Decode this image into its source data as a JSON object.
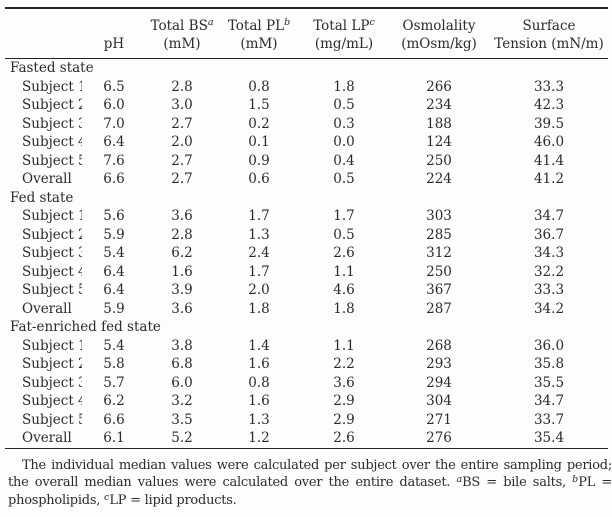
{
  "meta": {
    "background_color": "#fdfdfb",
    "ink_color": "#2b2b2b",
    "rule_color": "#242424"
  },
  "table": {
    "header": {
      "columns": [
        {
          "name": "row-label",
          "line1": "",
          "sup": "",
          "line2": ""
        },
        {
          "name": "ph",
          "line1": "",
          "sup": "",
          "line2": "pH"
        },
        {
          "name": "total-bs",
          "line1": "Total BS",
          "sup": "a",
          "line2": "(mM)"
        },
        {
          "name": "total-pl",
          "line1": "Total PL",
          "sup": "b",
          "line2": "(mM)"
        },
        {
          "name": "total-lp",
          "line1": "Total LP",
          "sup": "c",
          "line2": "(mg/mL)"
        },
        {
          "name": "osmolality",
          "line1": "Osmolality",
          "sup": "",
          "line2": "(mOsm/kg)"
        },
        {
          "name": "surface-tension",
          "line1": "Surface",
          "sup": "",
          "line2": "Tension (mN/m)"
        }
      ]
    },
    "groups": [
      {
        "label": "Fasted state",
        "rows": [
          {
            "label": "Subject 1",
            "values": [
              "6.5",
              "2.8",
              "0.8",
              "1.8",
              "266",
              "33.3"
            ]
          },
          {
            "label": "Subject 2",
            "values": [
              "6.0",
              "3.0",
              "1.5",
              "0.5",
              "234",
              "42.3"
            ]
          },
          {
            "label": "Subject 3",
            "values": [
              "7.0",
              "2.7",
              "0.2",
              "0.3",
              "188",
              "39.5"
            ]
          },
          {
            "label": "Subject 4",
            "values": [
              "6.4",
              "2.0",
              "0.1",
              "0.0",
              "124",
              "46.0"
            ]
          },
          {
            "label": "Subject 5",
            "values": [
              "7.6",
              "2.7",
              "0.9",
              "0.4",
              "250",
              "41.4"
            ]
          },
          {
            "label": "Overall",
            "values": [
              "6.6",
              "2.7",
              "0.6",
              "0.5",
              "224",
              "41.2"
            ]
          }
        ]
      },
      {
        "label": "Fed state",
        "rows": [
          {
            "label": "Subject 1",
            "values": [
              "5.6",
              "3.6",
              "1.7",
              "1.7",
              "303",
              "34.7"
            ]
          },
          {
            "label": "Subject 2",
            "values": [
              "5.9",
              "2.8",
              "1.3",
              "0.5",
              "285",
              "36.7"
            ]
          },
          {
            "label": "Subject 3",
            "values": [
              "5.4",
              "6.2",
              "2.4",
              "2.6",
              "312",
              "34.3"
            ]
          },
          {
            "label": "Subject 4",
            "values": [
              "6.4",
              "1.6",
              "1.7",
              "1.1",
              "250",
              "32.2"
            ]
          },
          {
            "label": "Subject 5",
            "values": [
              "6.4",
              "3.9",
              "2.0",
              "4.6",
              "367",
              "33.3"
            ]
          },
          {
            "label": "Overall",
            "values": [
              "5.9",
              "3.6",
              "1.8",
              "1.8",
              "287",
              "34.2"
            ]
          }
        ]
      },
      {
        "label": "Fat-enriched fed state",
        "rows": [
          {
            "label": "Subject 1",
            "values": [
              "5.4",
              "3.8",
              "1.4",
              "1.1",
              "268",
              "36.0"
            ]
          },
          {
            "label": "Subject 2",
            "values": [
              "5.8",
              "6.8",
              "1.6",
              "2.2",
              "293",
              "35.8"
            ]
          },
          {
            "label": "Subject 3",
            "values": [
              "5.7",
              "6.0",
              "0.8",
              "3.6",
              "294",
              "35.5"
            ]
          },
          {
            "label": "Subject 4",
            "values": [
              "6.2",
              "3.2",
              "1.6",
              "2.9",
              "304",
              "34.7"
            ]
          },
          {
            "label": "Subject 5",
            "values": [
              "6.6",
              "3.5",
              "1.3",
              "2.9",
              "271",
              "33.7"
            ]
          },
          {
            "label": "Overall",
            "values": [
              "6.1",
              "5.2",
              "1.2",
              "2.6",
              "276",
              "35.4"
            ]
          }
        ]
      }
    ]
  },
  "footnote": {
    "body": "The individual median values were calculated per subject over the entire sampling period; the overall median values were calculated over the entire dataset. ",
    "defs": [
      {
        "sup": "a",
        "text": "BS = bile salts, "
      },
      {
        "sup": "b",
        "text": "PL = phospholipids, "
      },
      {
        "sup": "c",
        "text": "LP = lipid products."
      }
    ]
  }
}
